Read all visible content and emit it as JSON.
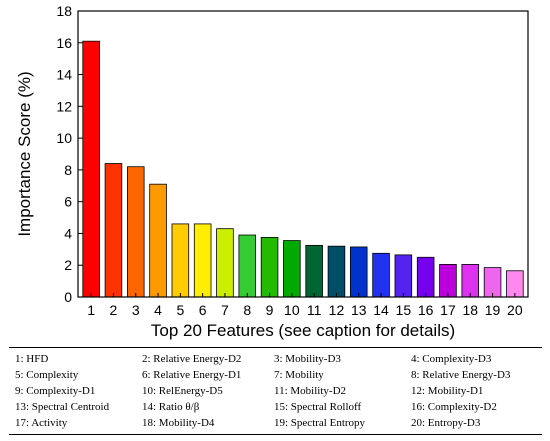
{
  "chart_data": {
    "type": "bar",
    "categories": [
      "1",
      "2",
      "3",
      "4",
      "5",
      "6",
      "7",
      "8",
      "9",
      "10",
      "11",
      "12",
      "13",
      "14",
      "15",
      "16",
      "17",
      "18",
      "19",
      "20"
    ],
    "values": [
      16.1,
      8.4,
      8.2,
      7.1,
      4.6,
      4.6,
      4.3,
      3.9,
      3.75,
      3.55,
      3.25,
      3.2,
      3.15,
      2.75,
      2.65,
      2.5,
      2.05,
      2.05,
      1.85,
      1.65
    ],
    "colors": [
      "#ff0000",
      "#ff3300",
      "#ff6600",
      "#ff9900",
      "#ffcc00",
      "#ffee00",
      "#ccee00",
      "#33cc33",
      "#22bb00",
      "#00aa00",
      "#006633",
      "#004d66",
      "#0033cc",
      "#2233ee",
      "#5522ee",
      "#7700ee",
      "#bb00dd",
      "#dd33ee",
      "#ee66ee",
      "#ff88ee"
    ],
    "title": "",
    "xlabel": "Top 20 Features (see caption for details)",
    "ylabel": "Importance Score (%)",
    "ylim": [
      0,
      18
    ],
    "yticks": [
      "0",
      "2",
      "4",
      "6",
      "8",
      "10",
      "12",
      "14",
      "16",
      "18"
    ],
    "grid": false,
    "legend_table": [
      [
        "1: HFD",
        "2: Relative Energy-D2",
        "3: Mobility-D3",
        "4: Complexity-D3"
      ],
      [
        "5: Complexity",
        "6: Relative Energy-D1",
        "7: Mobility",
        "8: Relative Energy-D3"
      ],
      [
        "9: Complexity-D1",
        "10: RelEnergy-D5",
        "11: Mobility-D2",
        "12: Mobility-D1"
      ],
      [
        "13: Spectral Centroid",
        "14: Ratio θ/β",
        "15: Spectral Rolloff",
        "16: Complexity-D2"
      ],
      [
        "17: Activity",
        "18: Mobility-D4",
        "19: Spectral Entropy",
        "20: Entropy-D3"
      ]
    ]
  }
}
